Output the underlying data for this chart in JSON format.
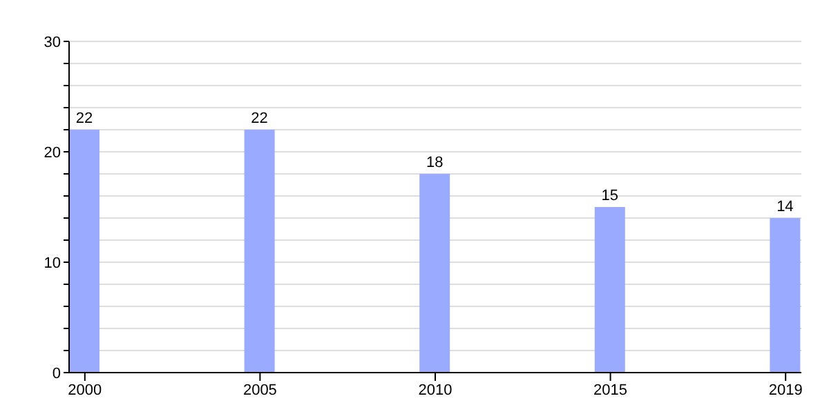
{
  "chart_data": {
    "type": "bar",
    "categories": [
      "2000",
      "2005",
      "2010",
      "2015",
      "2019"
    ],
    "values": [
      22,
      22,
      18,
      15,
      14
    ],
    "color": "#99aaff",
    "ylim": [
      0,
      30
    ],
    "yticks": [
      0,
      {
        "value": 2,
        "label": null
      },
      {
        "value": 4,
        "label": null
      },
      {
        "value": 6,
        "label": null
      },
      {
        "value": 8,
        "label": null
      },
      10,
      {
        "value": 12,
        "label": null
      },
      {
        "value": 14,
        "label": null
      },
      {
        "value": 16,
        "label": null
      },
      {
        "value": 18,
        "label": null
      },
      20,
      {
        "value": 22,
        "label": null
      },
      {
        "value": 24,
        "label": null
      },
      {
        "value": 26,
        "label": null
      },
      {
        "value": 28,
        "label": null
      },
      30
    ],
    "grid": "y",
    "data_labels": true
  }
}
